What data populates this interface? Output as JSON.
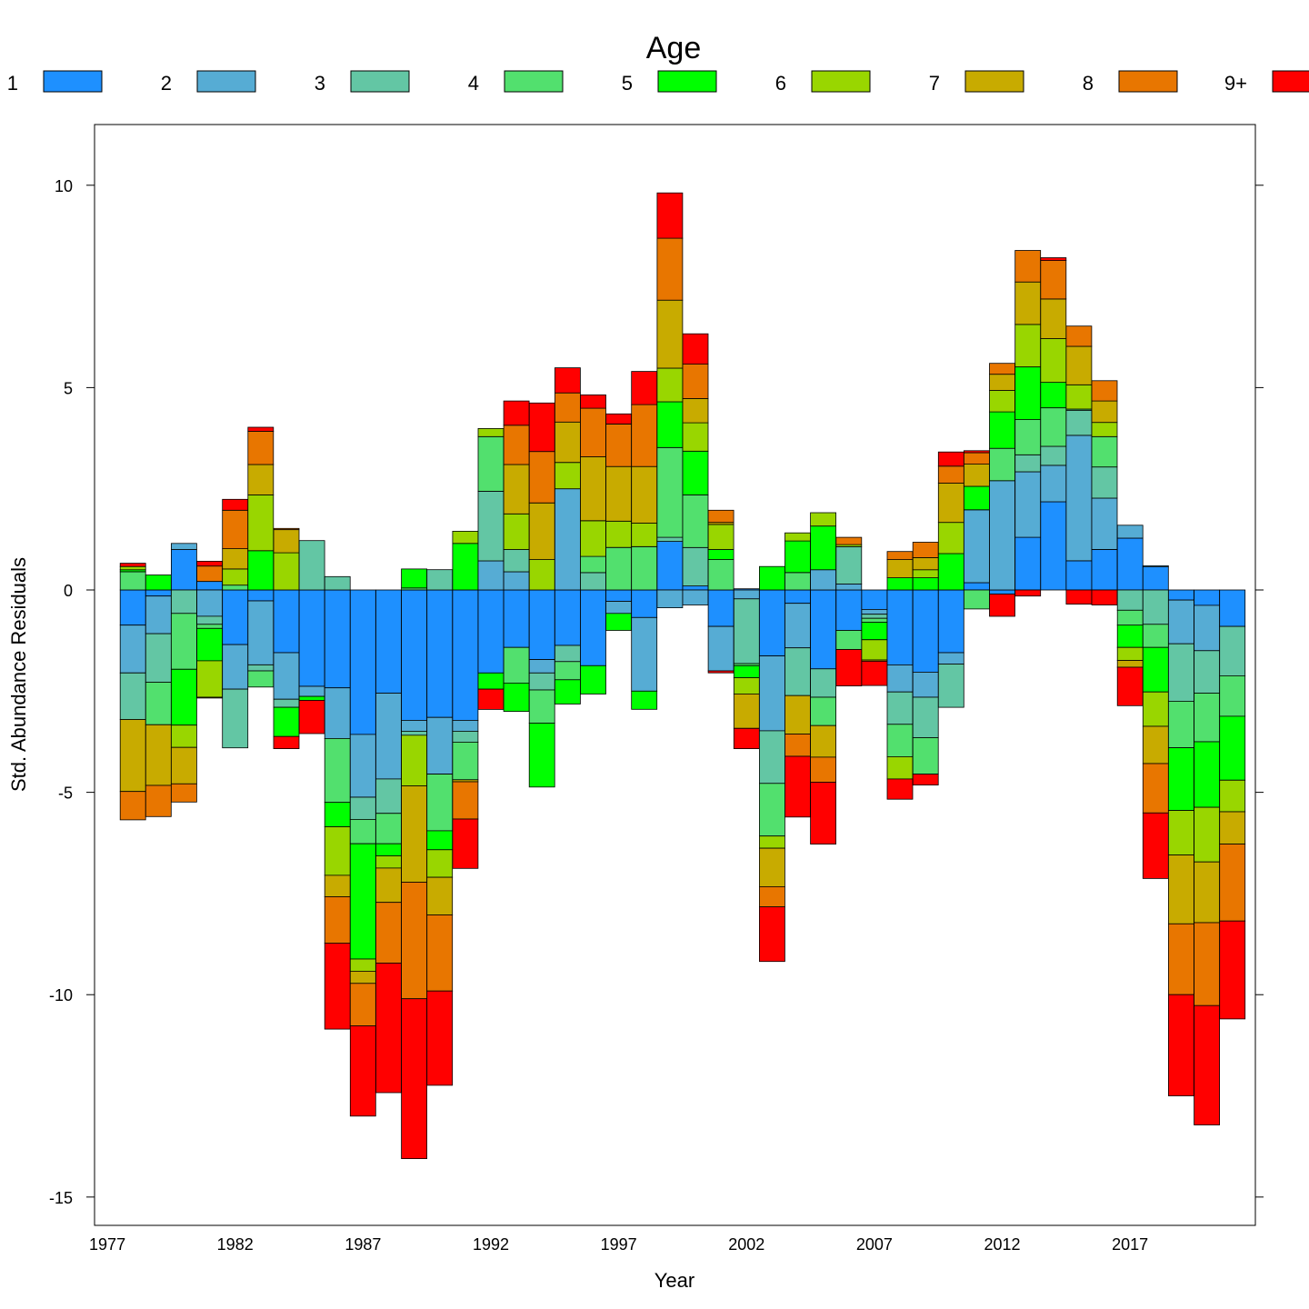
{
  "chart_data": {
    "type": "bar",
    "stacked": true,
    "diverging": true,
    "title": "",
    "legend_title": "Age",
    "legend_position": "top",
    "xlabel": "Year",
    "ylabel": "Std. Abundance Residuals",
    "ylim": [
      -15.7,
      11.5
    ],
    "yticks": [
      -15,
      -10,
      -5,
      0,
      5,
      10
    ],
    "ytick_labels": [
      "-15",
      "-10",
      "-5",
      "0",
      "5",
      "10"
    ],
    "xlim": [
      1976.5,
      2021.9
    ],
    "xticks": [
      1977,
      1982,
      1987,
      1992,
      1997,
      2002,
      2007,
      2012,
      2017
    ],
    "xtick_labels": [
      "1977",
      "1982",
      "1987",
      "1992",
      "1997",
      "2002",
      "2007",
      "2012",
      "2017"
    ],
    "x": [
      1978,
      1979,
      1980,
      1981,
      1982,
      1983,
      1984,
      1985,
      1986,
      1987,
      1988,
      1989,
      1990,
      1991,
      1992,
      1993,
      1994,
      1995,
      1996,
      1997,
      1998,
      1999,
      2000,
      2001,
      2002,
      2003,
      2004,
      2005,
      2006,
      2007,
      2008,
      2009,
      2010,
      2011,
      2012,
      2013,
      2014,
      2015,
      2016,
      2017,
      2018,
      2019,
      2020,
      2021
    ],
    "series": [
      {
        "name": "1",
        "color": "#1E90FF",
        "values": [
          -0.87,
          -0.15,
          1.0,
          0.21,
          -1.35,
          -0.27,
          -1.55,
          -2.38,
          -2.42,
          -3.57,
          -2.55,
          -3.22,
          -3.15,
          -3.22,
          -2.05,
          -1.42,
          -1.72,
          -1.37,
          -1.87,
          -0.28,
          -0.68,
          1.2,
          0.1,
          -0.9,
          0.03,
          -1.63,
          -0.33,
          -1.95,
          -1.0,
          -0.48,
          -1.85,
          -2.03,
          -1.55,
          0.18,
          -0.1,
          1.3,
          2.18,
          0.72,
          1.0,
          1.28,
          0.57,
          -0.25,
          -0.38,
          -0.9
        ]
      },
      {
        "name": "2",
        "color": "#56ACD4",
        "values": [
          -1.18,
          -0.93,
          0.15,
          -0.65,
          -1.1,
          -1.58,
          -1.15,
          -0.25,
          -1.25,
          -1.55,
          -2.12,
          -0.27,
          -1.4,
          -0.27,
          0.72,
          0.45,
          -0.33,
          2.5,
          0.0,
          -0.3,
          -1.82,
          -0.44,
          -0.37,
          -1.1,
          -0.22,
          -1.85,
          -1.1,
          0.5,
          0.15,
          -0.12,
          -0.67,
          -0.62,
          -0.28,
          1.8,
          2.7,
          1.62,
          0.9,
          3.1,
          1.27,
          0.32,
          0.03,
          -1.08,
          -1.12,
          0.0
        ]
      },
      {
        "name": "3",
        "color": "#63C6A4",
        "values": [
          -1.15,
          -1.2,
          -0.58,
          -0.2,
          -1.45,
          -0.15,
          -0.2,
          1.22,
          0.33,
          -0.55,
          -0.85,
          -0.1,
          0.5,
          -0.27,
          1.72,
          0.55,
          -0.42,
          -0.4,
          0.43,
          0.0,
          0.0,
          0.1,
          0.95,
          0.0,
          -1.6,
          -1.3,
          -1.18,
          -0.7,
          0.92,
          -0.1,
          -0.8,
          -1.0,
          -1.07,
          0.0,
          0.0,
          0.42,
          0.47,
          0.62,
          0.77,
          -0.5,
          -0.85,
          -1.42,
          -1.05,
          -1.22
        ]
      },
      {
        "name": "4",
        "color": "#52E06E",
        "values": [
          0.45,
          -1.05,
          -1.38,
          -0.1,
          0.12,
          -0.4,
          0.0,
          0.0,
          -1.58,
          -0.6,
          -0.75,
          0.05,
          -1.4,
          -0.93,
          1.35,
          -0.88,
          -0.82,
          -0.45,
          0.4,
          1.05,
          1.07,
          2.22,
          1.3,
          0.75,
          -0.05,
          -1.3,
          0.43,
          -0.7,
          -0.47,
          -0.1,
          -0.8,
          -0.9,
          0.0,
          -0.47,
          0.8,
          0.87,
          0.95,
          0.03,
          0.75,
          -0.37,
          -0.57,
          -1.15,
          -1.2,
          -1.0
        ]
      },
      {
        "name": "5",
        "color": "#00FF00",
        "values": [
          0.05,
          0.37,
          -1.38,
          -0.8,
          0.0,
          0.97,
          -0.72,
          -0.1,
          -0.6,
          -2.85,
          -0.3,
          0.47,
          -0.47,
          1.15,
          -0.4,
          -0.7,
          -1.58,
          -0.6,
          -0.7,
          -0.42,
          -0.45,
          1.13,
          1.08,
          0.25,
          -0.3,
          0.58,
          0.78,
          1.08,
          0.0,
          -0.43,
          0.3,
          0.3,
          0.9,
          0.58,
          0.9,
          1.3,
          0.63,
          0.0,
          0.0,
          -0.55,
          -1.1,
          -1.55,
          -1.62,
          -1.58
        ]
      },
      {
        "name": "6",
        "color": "#99D600",
        "values": [
          0.08,
          0.0,
          -0.55,
          -0.9,
          0.4,
          1.38,
          0.92,
          0.0,
          -1.2,
          -0.3,
          -0.3,
          -1.25,
          -0.68,
          0.3,
          0.2,
          0.88,
          0.75,
          0.65,
          0.88,
          0.65,
          0.58,
          0.83,
          0.7,
          0.62,
          -0.4,
          -0.3,
          0.2,
          0.33,
          0.05,
          -0.5,
          -0.55,
          0.2,
          0.77,
          0.0,
          0.53,
          1.05,
          1.08,
          0.6,
          0.35,
          -0.32,
          -0.85,
          -1.1,
          -1.35,
          -0.78
        ]
      },
      {
        "name": "7",
        "color": "#C8AB00",
        "values": [
          -1.78,
          -1.5,
          -0.9,
          -0.02,
          0.5,
          0.75,
          0.57,
          0.0,
          -0.53,
          -0.3,
          -0.85,
          -2.38,
          -0.93,
          -0.05,
          0.0,
          1.22,
          1.4,
          1.0,
          1.58,
          1.35,
          1.4,
          1.68,
          0.6,
          0.05,
          -0.85,
          -0.95,
          -0.95,
          -0.78,
          0.0,
          -0.03,
          0.45,
          0.3,
          0.97,
          0.55,
          0.4,
          1.05,
          0.98,
          0.95,
          0.53,
          -0.17,
          -0.92,
          -1.7,
          -1.5,
          -0.8
        ]
      },
      {
        "name": "8",
        "color": "#E87600",
        "values": [
          -0.7,
          -0.77,
          -0.45,
          0.38,
          0.95,
          0.82,
          0.03,
          0.0,
          -1.15,
          -1.05,
          -1.5,
          -2.88,
          -1.88,
          -0.92,
          0.0,
          0.97,
          1.27,
          0.72,
          1.2,
          1.05,
          1.53,
          1.53,
          0.85,
          0.3,
          0.0,
          -0.5,
          -0.55,
          -0.62,
          0.18,
          0.0,
          0.2,
          0.38,
          0.42,
          0.28,
          0.27,
          0.78,
          0.95,
          0.5,
          0.5,
          0.0,
          -1.22,
          -1.75,
          -2.05,
          -1.9
        ]
      },
      {
        "name": "9+",
        "color": "#FF0000",
        "values": [
          0.08,
          0.0,
          0.0,
          0.12,
          0.27,
          0.1,
          -0.3,
          -0.82,
          -2.12,
          -2.23,
          -3.2,
          -3.95,
          -2.33,
          -1.22,
          -0.5,
          0.6,
          1.2,
          0.62,
          0.33,
          0.25,
          0.82,
          1.12,
          0.75,
          -0.05,
          -0.5,
          -1.35,
          -1.5,
          -1.53,
          -0.9,
          -0.6,
          -0.5,
          -0.27,
          0.35,
          0.05,
          -0.55,
          -0.15,
          0.07,
          -0.35,
          -0.37,
          -0.95,
          -1.62,
          -2.5,
          -2.95,
          -2.42
        ]
      }
    ]
  }
}
